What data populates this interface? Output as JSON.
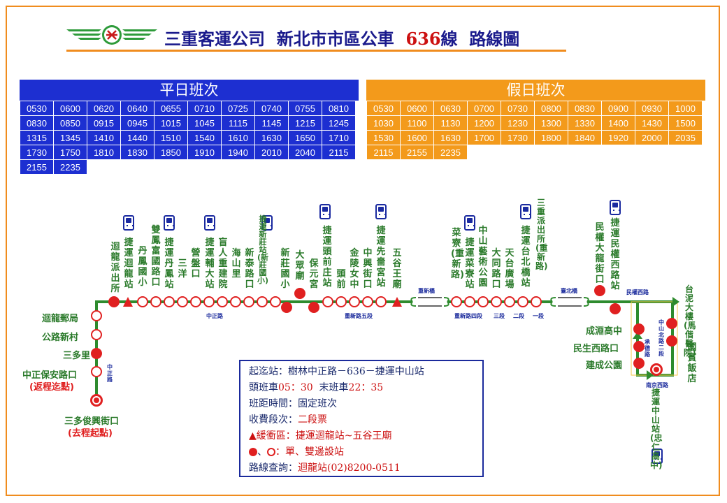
{
  "header": {
    "company": "三重客運公司",
    "area": "新北市市區公車",
    "route_num": "636",
    "line_suffix": "線",
    "title_tail": "路線圖"
  },
  "weekday": {
    "title": "平日班次",
    "times": [
      [
        "0530",
        "0600",
        "0620",
        "0640",
        "0655",
        "0710",
        "0725",
        "0740",
        "0755",
        "0810"
      ],
      [
        "0830",
        "0850",
        "0915",
        "0945",
        "1015",
        "1045",
        "1115",
        "1145",
        "1215",
        "1245"
      ],
      [
        "1315",
        "1345",
        "1410",
        "1440",
        "1510",
        "1540",
        "1610",
        "1630",
        "1650",
        "1710"
      ],
      [
        "1730",
        "1750",
        "1810",
        "1830",
        "1850",
        "1910",
        "1940",
        "2010",
        "2040",
        "2115"
      ],
      [
        "2155",
        "2235"
      ]
    ]
  },
  "holiday": {
    "title": "假日班次",
    "times": [
      [
        "0530",
        "0600",
        "0630",
        "0700",
        "0730",
        "0800",
        "0830",
        "0900",
        "0930",
        "1000"
      ],
      [
        "1030",
        "1100",
        "1130",
        "1200",
        "1230",
        "1300",
        "1330",
        "1400",
        "1430",
        "1500"
      ],
      [
        "1530",
        "1600",
        "1630",
        "1700",
        "1730",
        "1800",
        "1840",
        "1920",
        "2000",
        "2035"
      ],
      [
        "2115",
        "2155",
        "2235"
      ]
    ]
  },
  "stops": {
    "huilong_post": "迴龍郵局",
    "highway_village": "公路新村",
    "sanduoli": "三多里",
    "zhongzheng_baoan": "中正保安路口",
    "return_start": "(返程迄點)",
    "sanduo_xingjie": "三多俊興街口",
    "outbound_start": "(去程起點)",
    "top_row": [
      "迴龍派出所",
      "捷運迴龍站",
      "丹鳳國小",
      "雙鳳富國路口",
      "捷運丹鳳站",
      "三洋",
      "營盤口",
      "捷運輔大站",
      "盲人重建院",
      "海山里",
      "新泰路口",
      "捷運新莊站(新莊國小)",
      "新莊國小",
      "大眾廟",
      "保元宮",
      "捷運頭前庄站",
      "頭前",
      "金陵女中",
      "中興街口",
      "捷運先嗇宮站",
      "五谷王廟",
      "菜寮(重新路)",
      "捷運菜寮站",
      "中山藝術公園",
      "大同路口",
      "天台廣場",
      "捷運台北橋站",
      "三重派出所(重新路)",
      "民權大龍街口",
      "捷運民權西路站"
    ],
    "right_side": [
      "台泥大樓(馬偕醫院)",
      "國賓飯店",
      "成淵高中",
      "民生西路口",
      "建成公園",
      "捷運中山站(忠仁高中)"
    ]
  },
  "roads": {
    "zhongzheng": "中正路",
    "zhongzheng_v": "中正路",
    "chongxin_5": "重新路五段",
    "chongxin_4": "重新路四段",
    "sec3": "三段",
    "sec2": "二段",
    "sec1": "一段",
    "chongxin_bridge": "重新橋",
    "taipei_bridge": "臺北橋",
    "minquan_w": "民權西路",
    "zhongshan_n2": "中山北路二段",
    "chengde": "承德路",
    "nanjing_w": "南京西路"
  },
  "info": {
    "terminals_label": "起迄站：",
    "terminals": "樹林中正路－636－捷運中山站",
    "first_label": "頭班車",
    "first": "05：30",
    "last_label": "末班車",
    "last": "22：35",
    "interval_label": "班距時間：",
    "interval": "固定班次",
    "fare_label": "收費段次：",
    "fare": "二段票",
    "buffer_label": "▲緩衝區：",
    "buffer": "捷運迴龍站~五谷王廟",
    "stop_label": "、",
    "stop_text": "：單、雙邊設站",
    "hotline_label": "路線查詢：",
    "hotline": "迴龍站(02)8200-0511"
  },
  "colors": {
    "weekday": "#1d2fd1",
    "holiday": "#f39a1b",
    "route": "#2e8b2e",
    "stop": "#e02020",
    "frame": "#f08c1e"
  }
}
